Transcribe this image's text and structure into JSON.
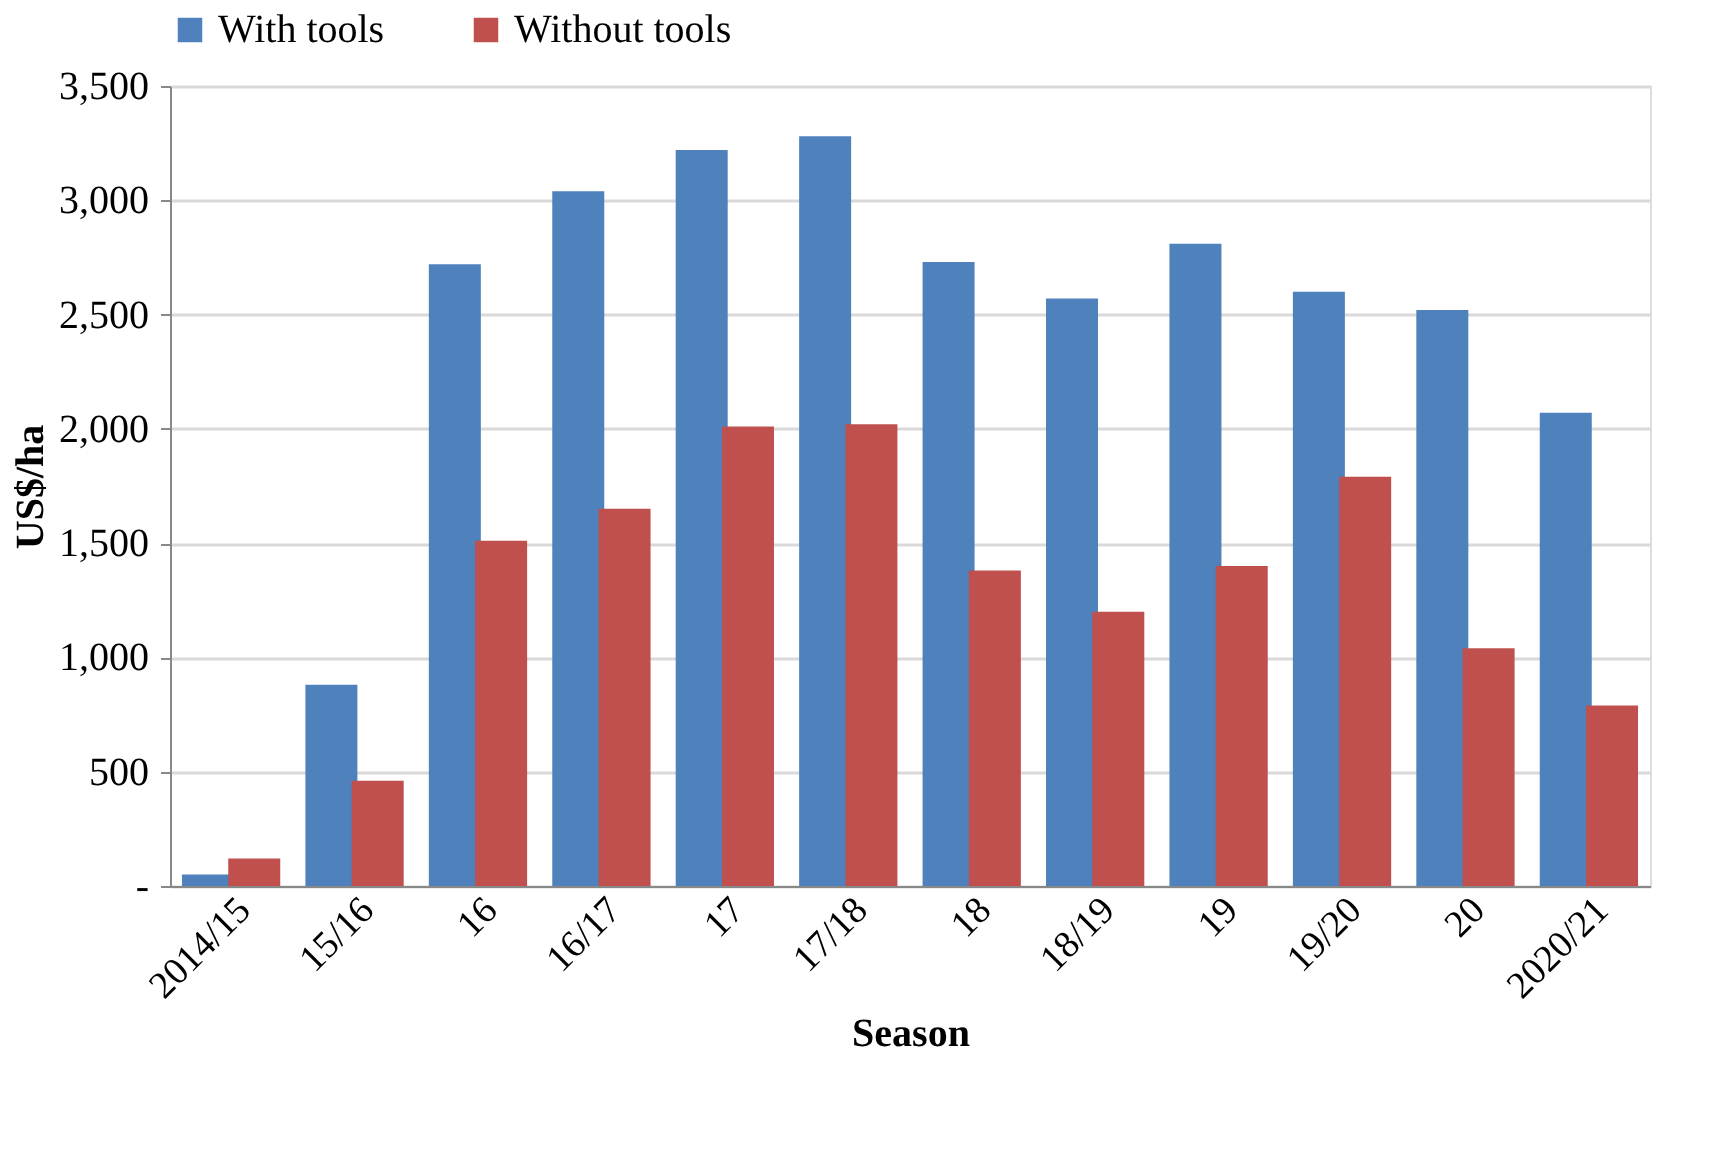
{
  "chart_data": {
    "type": "bar",
    "xlabel": "Season",
    "ylabel": "US$/ha",
    "categories": [
      "2014/15",
      "15/16",
      "16",
      "16/17",
      "17",
      "17/18",
      "18",
      "18/19",
      "19",
      "19/20",
      "20",
      "2020/21"
    ],
    "series": [
      {
        "name": "With tools",
        "color": "#4f81bd",
        "values": [
          50,
          880,
          2720,
          3040,
          3220,
          3280,
          2730,
          2570,
          2810,
          2600,
          2520,
          2070
        ]
      },
      {
        "name": "Without tools",
        "color": "#c0504d",
        "values": [
          120,
          460,
          1510,
          1650,
          2010,
          2020,
          1380,
          1200,
          1400,
          1790,
          1040,
          790
        ]
      }
    ],
    "ylim": [
      0,
      3500
    ],
    "yticks": [
      {
        "value": 0,
        "label": "-"
      },
      500,
      {
        "value": 1000,
        "label": "1,000"
      },
      {
        "value": 1500,
        "label": "1,500"
      },
      {
        "value": 2000,
        "label": "2,000"
      },
      {
        "value": 2500,
        "label": "2,500"
      },
      {
        "value": 3000,
        "label": "3,000"
      },
      {
        "value": 3500,
        "label": "3,500"
      }
    ],
    "grid": "y",
    "legend": "top"
  }
}
